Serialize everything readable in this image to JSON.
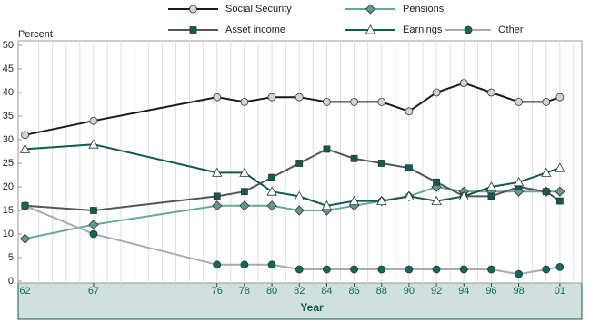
{
  "chart_data": {
    "type": "line",
    "y_label": "Percent",
    "x_label": "Year",
    "x": [
      1962,
      1967,
      1976,
      1978,
      1980,
      1982,
      1984,
      1986,
      1988,
      1990,
      1992,
      1994,
      1996,
      1998,
      2000,
      2001
    ],
    "series": [
      {
        "name": "Social Security",
        "color": "#1a1a1a",
        "marker": "circle",
        "marker_color": "#d4d4d4",
        "values": [
          31,
          34,
          39,
          38,
          39,
          39,
          38,
          38,
          38,
          36,
          40,
          42,
          40,
          38,
          38,
          39
        ]
      },
      {
        "name": "Pensions",
        "color": "#66a89d",
        "marker": "diamond",
        "marker_color": "#5f9a8f",
        "values": [
          9,
          12,
          16,
          16,
          16,
          15,
          15,
          16,
          17,
          18,
          20,
          19,
          19,
          19,
          19,
          19
        ]
      },
      {
        "name": "Asset income",
        "color": "#555555",
        "marker": "square",
        "marker_color": "#0b5e55",
        "values": [
          16,
          15,
          18,
          19,
          22,
          25,
          28,
          26,
          25,
          24,
          21,
          18,
          18,
          20,
          19,
          17
        ]
      },
      {
        "name": "Earnings",
        "color": "#0b5e55",
        "marker": "triangle",
        "marker_color": "#ffffff",
        "values": [
          28,
          29,
          23,
          23,
          19,
          18,
          16,
          17,
          17,
          18,
          17,
          18,
          20,
          21,
          23,
          24
        ]
      },
      {
        "name": "Other",
        "color": "#aaaaaa",
        "marker": "circle",
        "marker_color": "#0b6b60",
        "values": [
          16,
          10,
          3.5,
          3.5,
          3.5,
          2.5,
          2.5,
          2.5,
          2.5,
          2.5,
          2.5,
          2.5,
          2.5,
          1.5,
          2.5,
          3
        ]
      }
    ],
    "xlim": [
      1961.5,
      2002.6
    ],
    "xticks": [
      {
        "value": 1962,
        "label": "62"
      },
      {
        "value": 1967,
        "label": "67"
      },
      {
        "value": 1976,
        "label": "76"
      },
      {
        "value": 1978,
        "label": "78"
      },
      {
        "value": 1980,
        "label": "80"
      },
      {
        "value": 1982,
        "label": "82"
      },
      {
        "value": 1984,
        "label": "84"
      },
      {
        "value": 1986,
        "label": "86"
      },
      {
        "value": 1988,
        "label": "88"
      },
      {
        "value": 1990,
        "label": "90"
      },
      {
        "value": 1992,
        "label": "92"
      },
      {
        "value": 1994,
        "label": "94"
      },
      {
        "value": 1996,
        "label": "96"
      },
      {
        "value": 1998,
        "label": "98"
      },
      {
        "value": 2001,
        "label": "01"
      }
    ],
    "xgrid": [
      1962,
      1963,
      1964,
      1965,
      1966,
      1967,
      1968,
      1969,
      1970,
      1971,
      1972,
      1973,
      1974,
      1975,
      1976,
      1977,
      1978,
      1979,
      1980,
      1981,
      1982,
      1983,
      1984,
      1985,
      1986,
      1987,
      1988,
      1989,
      1990,
      1991,
      1992,
      1993,
      1994,
      1995,
      1996,
      1997,
      1998,
      1999,
      2000,
      2001,
      2002
    ],
    "ylim": [
      0,
      50
    ],
    "yticks": [
      0,
      5,
      10,
      15,
      20,
      25,
      30,
      35,
      40,
      45,
      50
    ],
    "grid": true
  }
}
